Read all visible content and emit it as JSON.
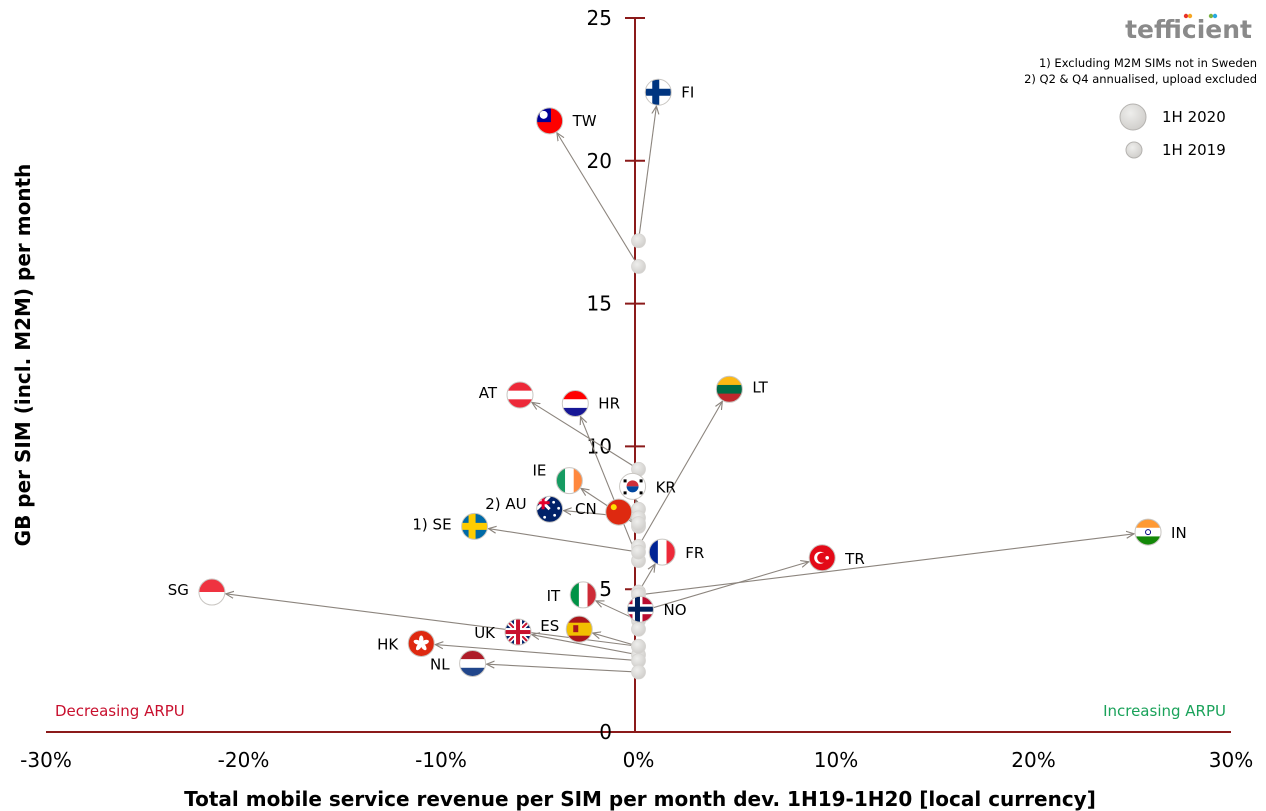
{
  "logo": {
    "text": "tefficient",
    "dot_colors": [
      "#e8332a",
      "#f5a623",
      "#7cb342",
      "#29a8e0"
    ]
  },
  "notes": [
    "1) Excluding M2M SIMs not in Sweden",
    "2) Q2 & Q4 annualised, upload excluded"
  ],
  "legend": [
    {
      "label": "1H 2020",
      "size": "large"
    },
    {
      "label": "1H 2019",
      "size": "small"
    }
  ],
  "annotations": {
    "left": {
      "text": "Decreasing ARPU",
      "color": "#c8102e"
    },
    "right": {
      "text": "Increasing ARPU",
      "color": "#1aa25a"
    }
  },
  "chart_data": {
    "type": "scatter",
    "title": "",
    "xlabel": "Total mobile service revenue per SIM per month dev. 1H19-1H20 [local currency]",
    "ylabel": "GB per SIM (incl. M2M) per month",
    "xlim": [
      -30,
      30
    ],
    "ylim": [
      0,
      25
    ],
    "x_unit": "%",
    "x_ticks": [
      "-30%",
      "-20%",
      "-10%",
      "0%",
      "10%",
      "20%",
      "30%"
    ],
    "y_ticks": [
      "0",
      "5",
      "10",
      "15",
      "20",
      "25"
    ],
    "grid": false,
    "axis_color": "#8b1a1a",
    "series": [
      {
        "name": "1H 2019",
        "type": "origin-points"
      },
      {
        "name": "1H 2020",
        "type": "flag-points"
      }
    ],
    "points": [
      {
        "country": "FI",
        "label": "FI",
        "x2019": 0.0,
        "y2019": 17.2,
        "x2020": 1.0,
        "y2020": 22.4,
        "colors": [
          "#ffffff",
          "#003580"
        ],
        "flag": "nordic"
      },
      {
        "country": "TW",
        "label": "TW",
        "x2019": 0.0,
        "y2019": 16.3,
        "x2020": -4.5,
        "y2020": 21.4,
        "colors": [
          "#fe0000",
          "#000095"
        ],
        "flag": "tw"
      },
      {
        "country": "LT",
        "label": "LT",
        "x2019": 0.0,
        "y2019": 6.5,
        "x2020": 4.6,
        "y2020": 12.0,
        "colors": [
          "#fdb913",
          "#006a44",
          "#c1272d"
        ],
        "flag": "hstripes"
      },
      {
        "country": "AT",
        "label": "AT",
        "x2019": 0.0,
        "y2019": 9.2,
        "x2020": -6.0,
        "y2020": 11.8,
        "colors": [
          "#ed2939",
          "#ffffff",
          "#ed2939"
        ],
        "flag": "hstripes"
      },
      {
        "country": "HR",
        "label": "HR",
        "x2019": 0.0,
        "y2019": 6.0,
        "x2020": -3.2,
        "y2020": 11.5,
        "colors": [
          "#ff0000",
          "#ffffff",
          "#171796"
        ],
        "flag": "hstripes"
      },
      {
        "country": "IE",
        "label": "IE",
        "x2019": 0.0,
        "y2019": 7.2,
        "x2020": -3.5,
        "y2020": 8.8,
        "colors": [
          "#169b62",
          "#ffffff",
          "#ff883e"
        ],
        "flag": "vstripes"
      },
      {
        "country": "KR",
        "label": "KR",
        "x2019": 0.0,
        "y2019": 7.8,
        "x2020": -0.3,
        "y2020": 8.6,
        "colors": [
          "#ffffff",
          "#cd2e3a",
          "#0047a0"
        ],
        "flag": "kr"
      },
      {
        "country": "AU",
        "label": "2) AU",
        "x2019": 0.0,
        "y2019": 7.5,
        "x2020": -4.5,
        "y2020": 7.8,
        "colors": [
          "#012169",
          "#ffffff",
          "#e4002b"
        ],
        "flag": "au"
      },
      {
        "country": "CN",
        "label": "CN",
        "x2019": 0.0,
        "y2019": 7.3,
        "x2020": -1.0,
        "y2020": 7.7,
        "colors": [
          "#de2910",
          "#ffde00"
        ],
        "flag": "cn"
      },
      {
        "country": "SE",
        "label": "1) SE",
        "x2019": 0.0,
        "y2019": 6.3,
        "x2020": -8.3,
        "y2020": 7.2,
        "colors": [
          "#006aa7",
          "#fecc00"
        ],
        "flag": "nordic"
      },
      {
        "country": "FR",
        "label": "FR",
        "x2019": 0.0,
        "y2019": 4.9,
        "x2020": 1.2,
        "y2020": 6.3,
        "colors": [
          "#002395",
          "#ffffff",
          "#ed2939"
        ],
        "flag": "vstripes"
      },
      {
        "country": "TR",
        "label": "TR",
        "x2019": 0.0,
        "y2019": 4.2,
        "x2020": 9.3,
        "y2020": 6.1,
        "colors": [
          "#e30a17",
          "#ffffff"
        ],
        "flag": "tr"
      },
      {
        "country": "IN",
        "label": "IN",
        "x2019": 0.0,
        "y2019": 4.8,
        "x2020": 25.8,
        "y2020": 7.0,
        "colors": [
          "#ff9933",
          "#ffffff",
          "#138808"
        ],
        "flag": "hstripes"
      },
      {
        "country": "SG",
        "label": "SG",
        "x2019": 0.0,
        "y2019": 3.0,
        "x2020": -21.6,
        "y2020": 4.9,
        "colors": [
          "#ef3340",
          "#ffffff"
        ],
        "flag": "hstripes2"
      },
      {
        "country": "IT",
        "label": "IT",
        "x2019": 0.0,
        "y2019": 3.9,
        "x2020": -2.8,
        "y2020": 4.8,
        "colors": [
          "#009246",
          "#ffffff",
          "#ce2b37"
        ],
        "flag": "vstripes"
      },
      {
        "country": "NO",
        "label": "NO",
        "x2019": 0.0,
        "y2019": 3.6,
        "x2020": 0.1,
        "y2020": 4.3,
        "colors": [
          "#ba0c2f",
          "#00205b",
          "#ffffff"
        ],
        "flag": "no"
      },
      {
        "country": "UK",
        "label": "UK",
        "x2019": 0.0,
        "y2019": 2.7,
        "x2020": -6.1,
        "y2020": 3.5,
        "colors": [
          "#012169",
          "#ffffff",
          "#c8102e"
        ],
        "flag": "uk"
      },
      {
        "country": "ES",
        "label": "ES",
        "x2019": 0.0,
        "y2019": 3.0,
        "x2020": -3.0,
        "y2020": 3.6,
        "colors": [
          "#aa151b",
          "#f1bf00",
          "#aa151b"
        ],
        "flag": "es"
      },
      {
        "country": "HK",
        "label": "HK",
        "x2019": 0.0,
        "y2019": 2.5,
        "x2020": -11.0,
        "y2020": 3.1,
        "colors": [
          "#de2910",
          "#ffffff"
        ],
        "flag": "hk"
      },
      {
        "country": "NL",
        "label": "NL",
        "x2019": 0.0,
        "y2019": 2.1,
        "x2020": -8.4,
        "y2020": 2.4,
        "colors": [
          "#ae1c28",
          "#ffffff",
          "#21468b"
        ],
        "flag": "hstripes"
      }
    ]
  }
}
